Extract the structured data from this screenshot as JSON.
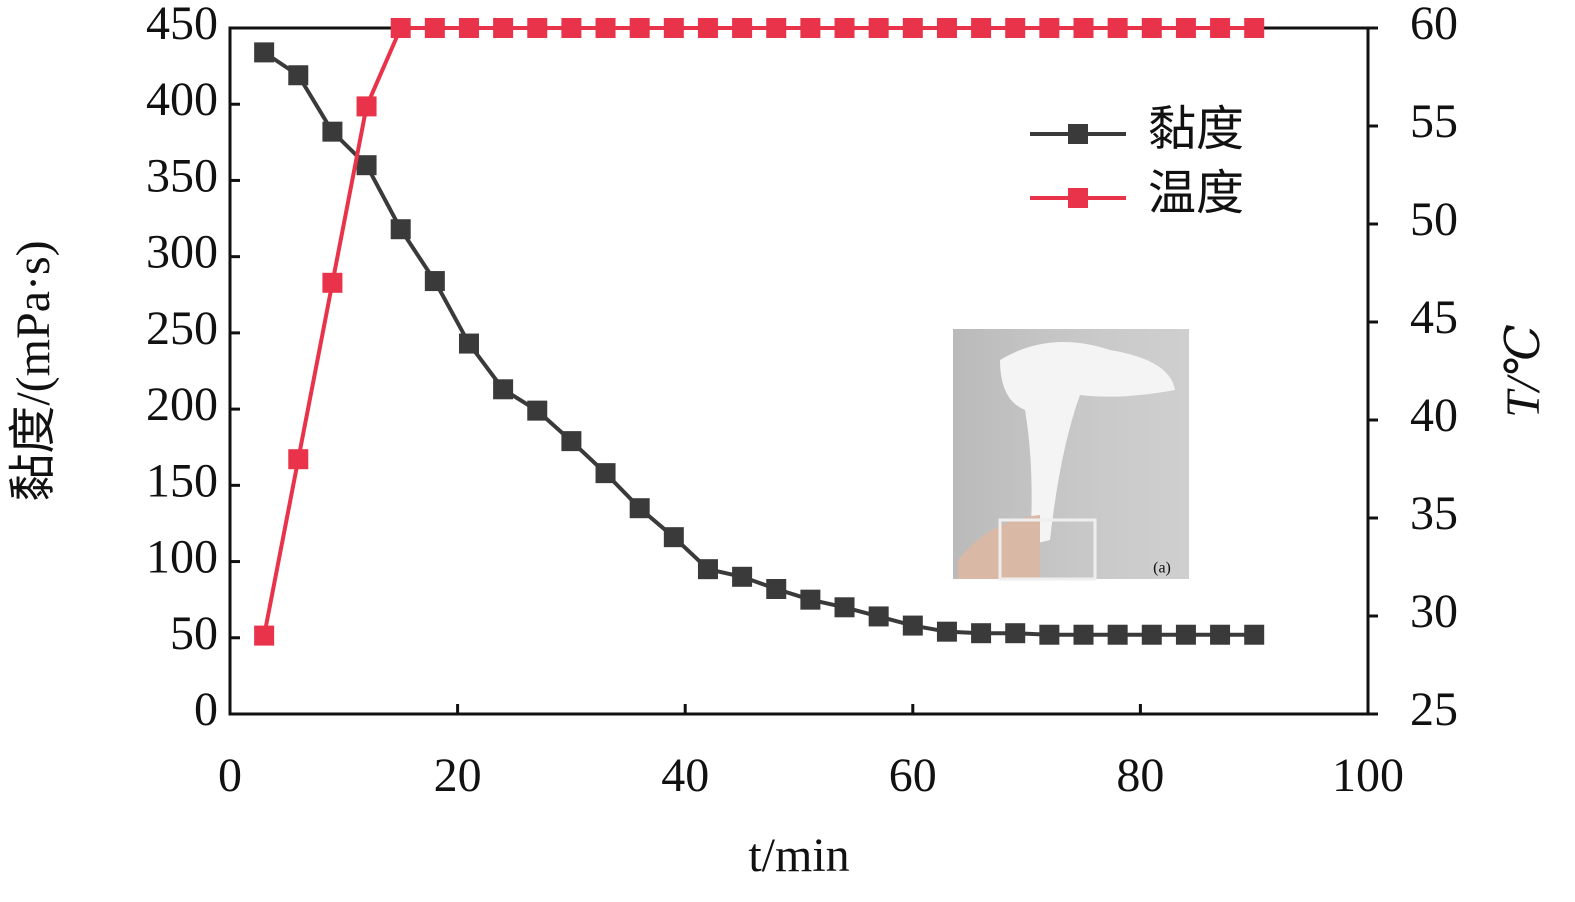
{
  "chart_data": {
    "type": "line",
    "x_label": "t/min",
    "y_label": "黏度/(mPa·s)",
    "y2_label": "T/℃",
    "inset_label": "(a)",
    "x": [
      3,
      6,
      9,
      12,
      15,
      18,
      21,
      24,
      27,
      30,
      33,
      36,
      39,
      42,
      45,
      48,
      51,
      54,
      57,
      60,
      63,
      66,
      69,
      72,
      75,
      78,
      81,
      84,
      87,
      90
    ],
    "series": [
      {
        "name": "黏度",
        "color": "#3a3a3a",
        "values": [
          434,
          419,
          382,
          360,
          318,
          284,
          243,
          213,
          199,
          179,
          158,
          135,
          116,
          95,
          90,
          82,
          75,
          70,
          64,
          58,
          54,
          53,
          53,
          52,
          52,
          52,
          52,
          52,
          52,
          52
        ]
      },
      {
        "name": "温度",
        "color": "#e8334a",
        "axis": "y2",
        "values": [
          29,
          38,
          47,
          56,
          60,
          60,
          60,
          60,
          60,
          60,
          60,
          60,
          60,
          60,
          60,
          60,
          60,
          60,
          60,
          60,
          60,
          60,
          60,
          60,
          60,
          60,
          60,
          60,
          60,
          60
        ]
      }
    ],
    "xlim": [
      0,
      100
    ],
    "xticks": [
      0,
      20,
      40,
      60,
      80,
      100
    ],
    "ylim": [
      0,
      450
    ],
    "yticks": [
      0,
      50,
      100,
      150,
      200,
      250,
      300,
      350,
      400,
      450
    ],
    "y2lim": [
      25,
      60
    ],
    "y2ticks": [
      25,
      30,
      35,
      40,
      45,
      50,
      55,
      60
    ],
    "legend": "upper right",
    "grid": false
  }
}
